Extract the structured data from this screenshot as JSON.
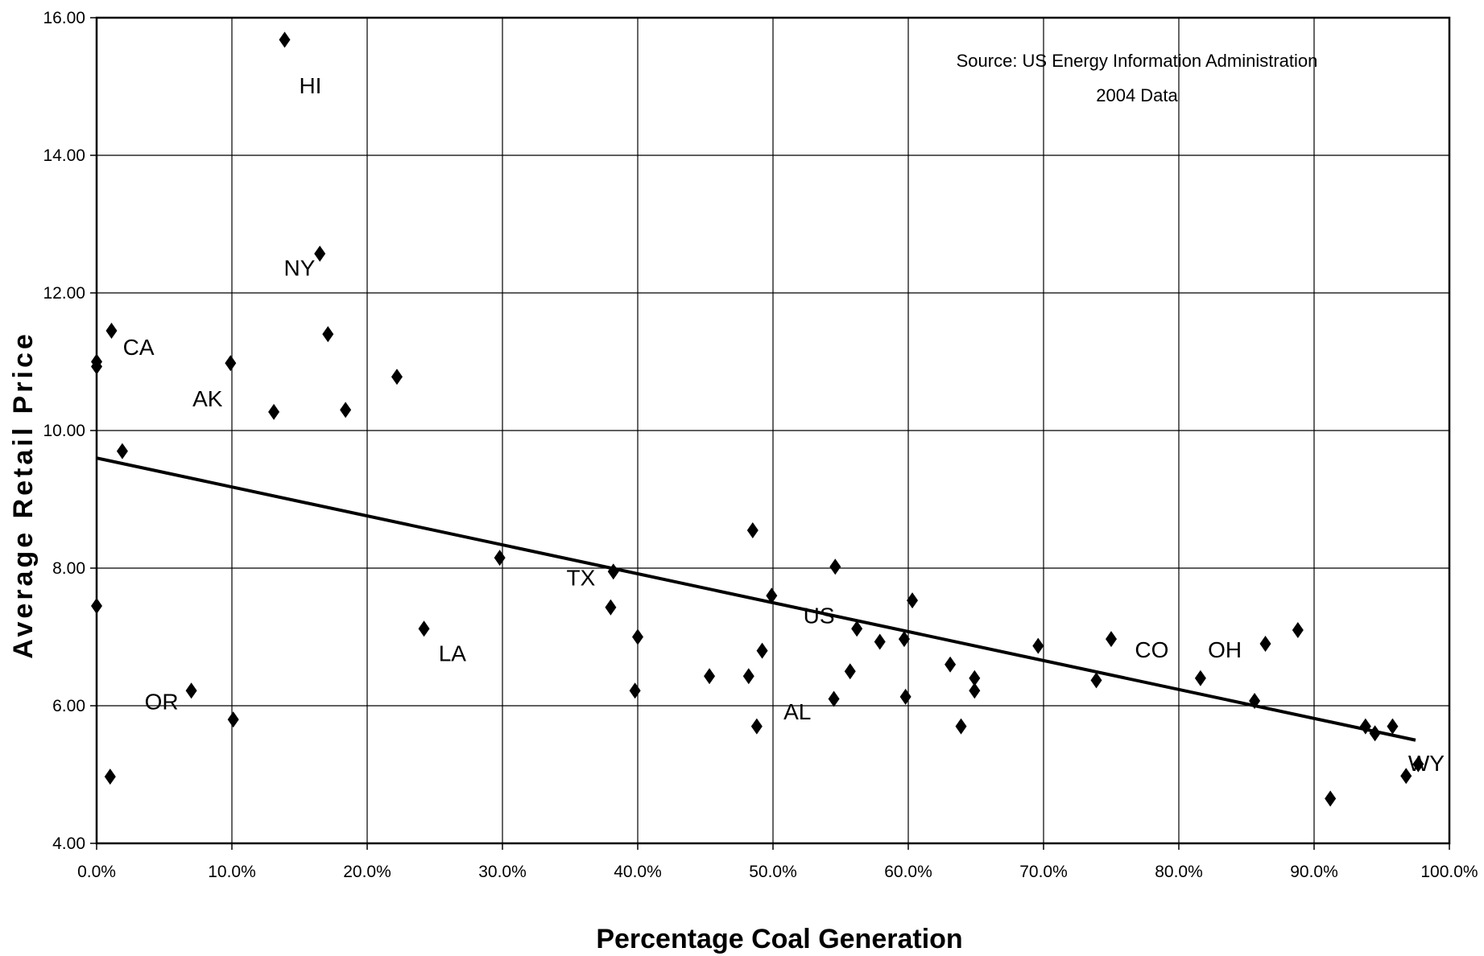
{
  "chart_data": {
    "type": "scatter",
    "xlabel": "Percentage Coal Generation",
    "ylabel": "Average Retail Price",
    "xlim": [
      0,
      1
    ],
    "ylim": [
      4,
      16
    ],
    "x_ticks": [
      0,
      0.1,
      0.2,
      0.3,
      0.4,
      0.5,
      0.6,
      0.7,
      0.8,
      0.9,
      1.0
    ],
    "x_tick_labels": [
      "0.0%",
      "10.0%",
      "20.0%",
      "30.0%",
      "40.0%",
      "50.0%",
      "60.0%",
      "70.0%",
      "80.0%",
      "90.0%",
      "100.0%"
    ],
    "y_ticks": [
      4,
      6,
      8,
      10,
      12,
      14,
      16
    ],
    "y_tick_labels": [
      "4.00",
      "6.00",
      "8.00",
      "10.00",
      "12.00",
      "14.00",
      "16.00"
    ],
    "grid": true,
    "annotations": [
      "Source: US Energy Information Administration",
      "2004 Data"
    ],
    "trendline": {
      "x": [
        0.0,
        0.975
      ],
      "y": [
        9.6,
        5.5
      ]
    },
    "points": [
      {
        "x": 0.0,
        "y": 11.0
      },
      {
        "x": 0.0,
        "y": 10.93
      },
      {
        "x": 0.0,
        "y": 7.45
      },
      {
        "x": 0.01,
        "y": 4.97
      },
      {
        "x": 0.011,
        "y": 11.45
      },
      {
        "x": 0.019,
        "y": 9.7
      },
      {
        "x": 0.07,
        "y": 6.22
      },
      {
        "x": 0.099,
        "y": 10.98
      },
      {
        "x": 0.101,
        "y": 5.8
      },
      {
        "x": 0.131,
        "y": 10.27
      },
      {
        "x": 0.139,
        "y": 15.68
      },
      {
        "x": 0.165,
        "y": 12.57
      },
      {
        "x": 0.171,
        "y": 11.4
      },
      {
        "x": 0.184,
        "y": 10.3
      },
      {
        "x": 0.222,
        "y": 10.78
      },
      {
        "x": 0.242,
        "y": 7.12
      },
      {
        "x": 0.298,
        "y": 8.15
      },
      {
        "x": 0.38,
        "y": 7.43
      },
      {
        "x": 0.382,
        "y": 7.95
      },
      {
        "x": 0.398,
        "y": 6.22
      },
      {
        "x": 0.4,
        "y": 7.0
      },
      {
        "x": 0.453,
        "y": 6.43
      },
      {
        "x": 0.482,
        "y": 6.43
      },
      {
        "x": 0.485,
        "y": 8.55
      },
      {
        "x": 0.488,
        "y": 5.7
      },
      {
        "x": 0.492,
        "y": 6.8
      },
      {
        "x": 0.499,
        "y": 7.6
      },
      {
        "x": 0.545,
        "y": 6.1
      },
      {
        "x": 0.546,
        "y": 8.02
      },
      {
        "x": 0.557,
        "y": 6.5
      },
      {
        "x": 0.562,
        "y": 7.12
      },
      {
        "x": 0.579,
        "y": 6.93
      },
      {
        "x": 0.597,
        "y": 6.97
      },
      {
        "x": 0.598,
        "y": 6.13
      },
      {
        "x": 0.603,
        "y": 7.53
      },
      {
        "x": 0.631,
        "y": 6.6
      },
      {
        "x": 0.639,
        "y": 5.7
      },
      {
        "x": 0.649,
        "y": 6.4
      },
      {
        "x": 0.649,
        "y": 6.22
      },
      {
        "x": 0.696,
        "y": 6.87
      },
      {
        "x": 0.739,
        "y": 6.37
      },
      {
        "x": 0.75,
        "y": 6.97
      },
      {
        "x": 0.816,
        "y": 6.4
      },
      {
        "x": 0.856,
        "y": 6.07
      },
      {
        "x": 0.864,
        "y": 6.9
      },
      {
        "x": 0.888,
        "y": 7.1
      },
      {
        "x": 0.912,
        "y": 4.65
      },
      {
        "x": 0.938,
        "y": 5.7
      },
      {
        "x": 0.945,
        "y": 5.6
      },
      {
        "x": 0.958,
        "y": 5.7
      },
      {
        "x": 0.968,
        "y": 4.98
      },
      {
        "x": 0.977,
        "y": 5.15
      }
    ],
    "labels": [
      {
        "text": "HI",
        "x": 0.158,
        "y": 14.9
      },
      {
        "text": "NY",
        "x": 0.15,
        "y": 12.25
      },
      {
        "text": "CA",
        "x": 0.031,
        "y": 11.1
      },
      {
        "text": "AK",
        "x": 0.082,
        "y": 10.35
      },
      {
        "text": "OR",
        "x": 0.048,
        "y": 5.95
      },
      {
        "text": "LA",
        "x": 0.263,
        "y": 6.65
      },
      {
        "text": "TX",
        "x": 0.358,
        "y": 7.75
      },
      {
        "text": "US",
        "x": 0.534,
        "y": 7.2
      },
      {
        "text": "AL",
        "x": 0.518,
        "y": 5.8
      },
      {
        "text": "CO",
        "x": 0.78,
        "y": 6.7
      },
      {
        "text": "OH",
        "x": 0.834,
        "y": 6.7
      },
      {
        "text": "WY",
        "x": 0.983,
        "y": 5.05
      }
    ]
  }
}
